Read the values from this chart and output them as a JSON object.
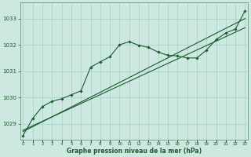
{
  "xlabel_label": "Graphe pression niveau de la mer (hPa)",
  "bg_color": "#cce8e0",
  "grid_color": "#99ccbb",
  "line_color": "#1a5c2a",
  "ylim": [
    1028.4,
    1033.6
  ],
  "xlim": [
    -0.3,
    23.3
  ],
  "yticks": [
    1029,
    1030,
    1031,
    1032,
    1033
  ],
  "xticks": [
    0,
    1,
    2,
    3,
    4,
    5,
    6,
    7,
    8,
    9,
    10,
    11,
    12,
    13,
    14,
    15,
    16,
    17,
    18,
    19,
    20,
    21,
    22,
    23
  ],
  "series1_x": [
    0,
    1,
    2,
    3,
    4,
    5,
    6,
    7,
    8,
    9,
    10,
    11,
    12,
    13,
    14,
    15,
    16,
    17,
    18,
    19,
    20,
    21,
    22,
    23
  ],
  "series1_y": [
    1028.55,
    1029.2,
    1029.65,
    1029.85,
    1029.95,
    1030.1,
    1030.25,
    1031.15,
    1031.35,
    1031.55,
    1032.0,
    1032.12,
    1031.98,
    1031.9,
    1031.72,
    1031.6,
    1031.58,
    1031.5,
    1031.5,
    1031.8,
    1032.2,
    1032.45,
    1032.6,
    1033.3
  ],
  "series2_x": [
    0,
    23
  ],
  "series2_y": [
    1028.7,
    1033.0
  ],
  "series3_x": [
    0,
    23
  ],
  "series3_y": [
    1028.75,
    1032.65
  ],
  "marker_x": [
    0,
    1,
    2,
    3,
    4,
    5,
    6,
    7,
    8,
    9,
    10,
    11,
    12,
    13,
    14,
    15,
    16,
    17,
    18,
    19,
    20,
    21,
    22,
    23
  ],
  "marker_y": [
    1028.55,
    1029.2,
    1029.65,
    1029.85,
    1029.95,
    1030.1,
    1030.25,
    1031.15,
    1031.35,
    1031.55,
    1032.0,
    1032.12,
    1031.98,
    1031.9,
    1031.72,
    1031.6,
    1031.58,
    1031.5,
    1031.5,
    1031.8,
    1032.2,
    1032.45,
    1032.6,
    1033.3
  ]
}
